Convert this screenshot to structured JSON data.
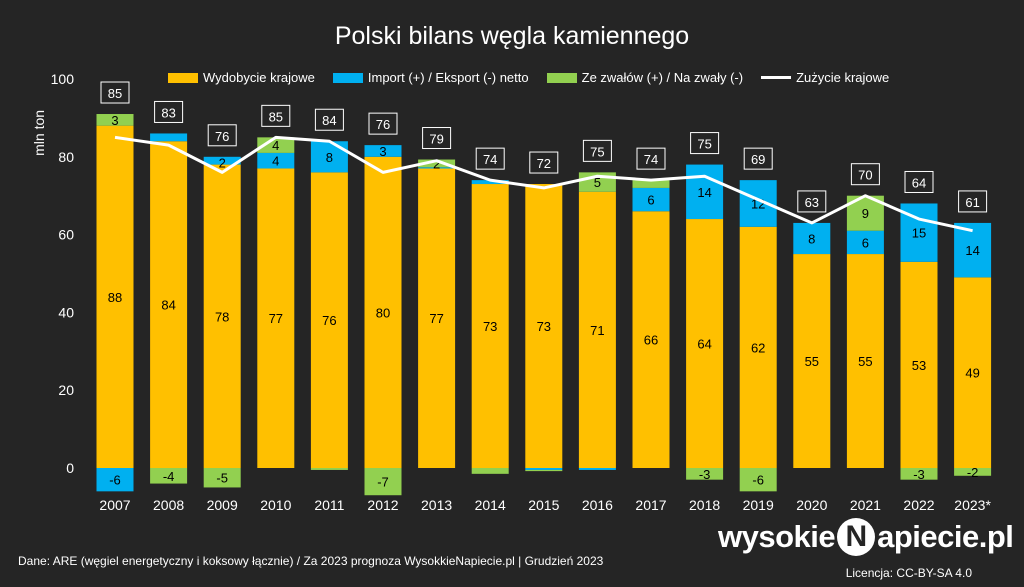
{
  "header": {
    "title": "Polski bilans węgla kamiennego"
  },
  "footer": {
    "source": "Dane: ARE (węgiel energetyczny i koksowy łącznie)  /  Za 2023 prognoza WysokkieNapiecie.pl  |  Grudzień 2023",
    "license": "Licencja: CC-BY-SA 4.0",
    "brand_part1": "wysokie",
    "brand_n": "N",
    "brand_part2": "apiecie.pl"
  },
  "colors": {
    "background": "#252525",
    "mining": "#FFC000",
    "trade": "#00B0F0",
    "stock": "#92D050",
    "consumption": "#FFFFFF"
  },
  "chart_data": {
    "type": "bar",
    "stacked": true,
    "title": "Polski bilans węgla kamiennego",
    "ylabel": "mln ton",
    "ylim": [
      -7,
      100
    ],
    "yticks": [
      0,
      20,
      40,
      60,
      80,
      100
    ],
    "grid": false,
    "legend_position": "top",
    "categories": [
      "2007",
      "2008",
      "2009",
      "2010",
      "2011",
      "2012",
      "2013",
      "2014",
      "2015",
      "2016",
      "2017",
      "2018",
      "2019",
      "2020",
      "2021",
      "2022",
      "2023*"
    ],
    "series": [
      {
        "name": "Wydobycie krajowe",
        "color": "#FFC000",
        "values": [
          88,
          84,
          78,
          77,
          76,
          80,
          77,
          73,
          73,
          71,
          66,
          64,
          62,
          55,
          55,
          53,
          49
        ],
        "labels": [
          "88",
          "84",
          "78",
          "77",
          "76",
          "80",
          "77",
          "73",
          "73",
          "71",
          "66",
          "64",
          "62",
          "55",
          "55",
          "53",
          "49"
        ]
      },
      {
        "name": "Import (+) / Eksport (-) netto",
        "color": "#00B0F0",
        "values": [
          -6,
          2,
          2,
          4,
          8,
          3,
          0.3,
          1,
          -0.5,
          -0.5,
          6,
          14,
          12,
          8,
          6,
          15,
          14
        ],
        "labels": [
          "-6",
          "",
          "",
          "4",
          "8",
          "3",
          "",
          "",
          "",
          "",
          "6",
          "14",
          "12",
          "8",
          "6",
          "15",
          "14"
        ]
      },
      {
        "name": "Ze zwałów (+) / Na zwały (-)",
        "color": "#92D050",
        "values": [
          3,
          -4,
          -5,
          4,
          -0.5,
          -7,
          2,
          -1.5,
          -0.3,
          5,
          2,
          -3,
          -6,
          0,
          9,
          -3,
          -2
        ],
        "labels": [
          "3",
          "-4",
          "-5",
          "4",
          "",
          "-7",
          "2",
          "",
          "",
          "5",
          "",
          "-3",
          "-6",
          "",
          "9",
          "-3",
          "-2"
        ]
      },
      {
        "name": "Zużycie krajowe",
        "type": "line",
        "color": "#FFFFFF",
        "values": [
          85,
          83,
          76,
          85,
          84,
          76,
          79,
          74,
          72,
          75,
          74,
          75,
          69,
          63,
          70,
          64,
          61
        ],
        "labels": [
          "85",
          "83",
          "76",
          "85",
          "84",
          "76",
          "79",
          "74",
          "72",
          "75",
          "74",
          "75",
          "69",
          "63",
          "70",
          "64",
          "61"
        ]
      }
    ],
    "stack_extra_labels": [
      "",
      "",
      "2",
      "",
      "",
      "",
      "",
      "",
      "",
      "",
      "",
      "",
      "",
      "",
      "",
      "",
      ""
    ]
  }
}
